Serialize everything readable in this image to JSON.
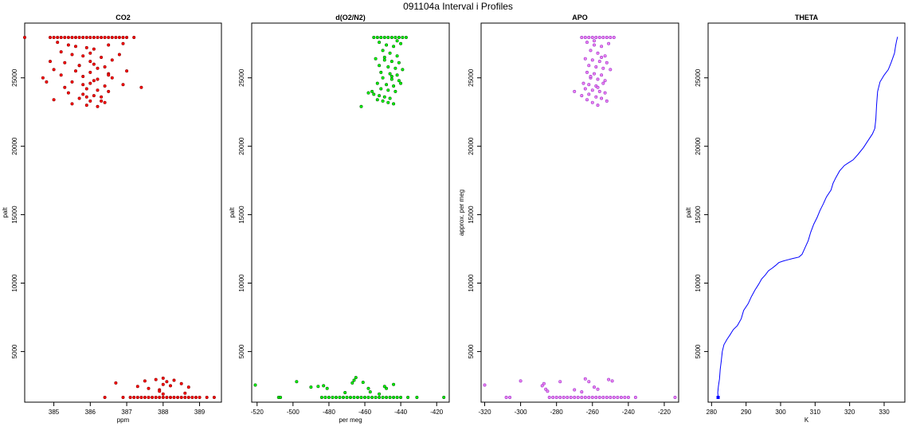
{
  "figure": {
    "title": "091104a   Interval i Profiles"
  },
  "chart_data": [
    {
      "type": "scatter",
      "title": "CO2",
      "xlabel": "ppm",
      "ylabel": "palt",
      "xlim": [
        384.2,
        389.6
      ],
      "ylim": [
        1300,
        29000
      ],
      "xticks": [
        385,
        386,
        387,
        388,
        389
      ],
      "yticks": [
        5000,
        10000,
        15000,
        20000,
        25000
      ],
      "color_fill": "#ff0000",
      "color_edge": "#8b0000",
      "series": [
        {
          "x": [
            384.2,
            384.9,
            385.0,
            385.1,
            385.2,
            385.3,
            385.4,
            385.5,
            385.6,
            385.7,
            385.8,
            385.9,
            386.0,
            386.1,
            386.2,
            386.3,
            386.4,
            386.5,
            386.6,
            386.7,
            386.8,
            386.9,
            387.0,
            387.2,
            385.1,
            385.4,
            385.6,
            385.9,
            386.1,
            386.5,
            386.9,
            385.2,
            385.5,
            385.8,
            386.0,
            386.3,
            386.6,
            386.8,
            384.9,
            385.3,
            385.7,
            386.1,
            386.4,
            386.2,
            385.0,
            385.6,
            386.0,
            386.5,
            387.0,
            384.7,
            385.2,
            385.8,
            386.2,
            386.6,
            385.5,
            386.0,
            386.4,
            386.9,
            385.3,
            385.9,
            386.2,
            386.5,
            384.8,
            385.4,
            385.8,
            386.1,
            386.3,
            387.4,
            385.0,
            385.7,
            386.0,
            386.4,
            385.5,
            385.9,
            386.2,
            385.7,
            386.0,
            386.5,
            385.8,
            386.1,
            385.9,
            386.3
          ],
          "y": [
            27950,
            27950,
            27950,
            27950,
            27950,
            27950,
            27950,
            27950,
            27950,
            27950,
            27950,
            27950,
            27950,
            27950,
            27950,
            27950,
            27950,
            27950,
            27950,
            27950,
            27950,
            27950,
            27950,
            27950,
            27600,
            27400,
            27300,
            27200,
            27100,
            27400,
            27500,
            26900,
            26700,
            26600,
            26800,
            26500,
            26300,
            26700,
            26200,
            26100,
            25900,
            26000,
            25800,
            25700,
            25600,
            25500,
            25400,
            25300,
            25500,
            25000,
            25200,
            25100,
            24900,
            25000,
            24700,
            24600,
            24400,
            24500,
            24300,
            24200,
            24100,
            24000,
            24700,
            23900,
            23800,
            23700,
            23600,
            24300,
            23400,
            23500,
            23300,
            23200,
            23100,
            23000,
            22900,
            25900,
            26200,
            25200,
            24500,
            24800,
            23600,
            23300
          ]
        },
        {
          "x": [
            386.4,
            386.9,
            387.1,
            387.2,
            387.3,
            387.4,
            387.5,
            387.6,
            387.7,
            387.8,
            387.9,
            388.0,
            388.1,
            388.2,
            388.3,
            388.4,
            388.5,
            388.6,
            388.7,
            388.8,
            388.9,
            389.0,
            389.2,
            389.4,
            387.3,
            387.6,
            387.9,
            388.0,
            388.2,
            388.5,
            388.7,
            386.7,
            387.5,
            387.8,
            388.1,
            388.3,
            388.0,
            387.9,
            388.0,
            388.6
          ],
          "y": [
            1650,
            1650,
            1650,
            1650,
            1650,
            1650,
            1650,
            1650,
            1650,
            1650,
            1650,
            1650,
            1650,
            1650,
            1650,
            1650,
            1650,
            1650,
            1650,
            1650,
            1650,
            1650,
            1650,
            1650,
            2450,
            2300,
            2200,
            2600,
            2500,
            2650,
            2400,
            2700,
            2850,
            2950,
            2800,
            2900,
            3050,
            2100,
            1900,
            1950
          ]
        }
      ]
    },
    {
      "type": "scatter",
      "title": "d(O2/N2)",
      "xlabel": "per meg",
      "ylabel": "palt",
      "xlim": [
        -523,
        -413
      ],
      "ylim": [
        1300,
        29000
      ],
      "xticks": [
        -520,
        -500,
        -480,
        -460,
        -440,
        -420
      ],
      "yticks": [
        5000,
        10000,
        15000,
        20000,
        25000
      ],
      "color_fill": "#00ff00",
      "color_edge": "#006400",
      "series": [
        {
          "x": [
            -455,
            -453,
            -451,
            -449,
            -447,
            -445,
            -443,
            -441,
            -439,
            -437,
            -452,
            -448,
            -444,
            -440,
            -450,
            -446,
            -442,
            -454,
            -449,
            -445,
            -441,
            -452,
            -447,
            -443,
            -439,
            -451,
            -446,
            -442,
            -450,
            -445,
            -441,
            -453,
            -448,
            -444,
            -440,
            -451,
            -447,
            -443,
            -458,
            -455,
            -452,
            -449,
            -446,
            -462,
            -456,
            -453,
            -450,
            -447,
            -444,
            -442,
            -449,
            -445
          ],
          "y": [
            27950,
            27950,
            27950,
            27950,
            27950,
            27950,
            27950,
            27950,
            27950,
            27950,
            27600,
            27400,
            27300,
            27500,
            27000,
            26800,
            26600,
            26400,
            26300,
            26200,
            26100,
            25900,
            25800,
            25700,
            25600,
            25400,
            25300,
            25200,
            25000,
            24900,
            24800,
            24600,
            24500,
            24400,
            24600,
            24200,
            24100,
            24000,
            23900,
            23800,
            23700,
            23600,
            23500,
            22900,
            24000,
            23400,
            23300,
            23200,
            23100,
            27700,
            26500,
            25100
          ]
        },
        {
          "x": [
            -521,
            -508,
            -507,
            -498,
            -490,
            -486,
            -484,
            -482,
            -480,
            -478,
            -476,
            -474,
            -472,
            -470,
            -468,
            -466,
            -464,
            -462,
            -460,
            -458,
            -456,
            -454,
            -452,
            -450,
            -448,
            -446,
            -444,
            -442,
            -440,
            -436,
            -431,
            -416,
            -483,
            -481,
            -466,
            -465,
            -467,
            -458,
            -457,
            -449,
            -448,
            -452,
            -444,
            -471,
            -461
          ],
          "y": [
            2550,
            1650,
            1650,
            2800,
            2400,
            2450,
            1650,
            1650,
            1650,
            1650,
            1650,
            1650,
            1650,
            1650,
            1650,
            1650,
            1650,
            1650,
            1650,
            1650,
            1650,
            1650,
            1650,
            1650,
            1650,
            1650,
            1650,
            1650,
            1650,
            1650,
            1650,
            1650,
            2500,
            2300,
            2900,
            3100,
            2700,
            2300,
            2050,
            2450,
            2300,
            1900,
            2600,
            2000,
            2750
          ]
        }
      ]
    },
    {
      "type": "scatter",
      "title": "APO",
      "xlabel": "",
      "ylabel": "approx. per meg",
      "xlim": [
        -322,
        -212
      ],
      "ylim": [
        1300,
        29000
      ],
      "xticks": [
        -320,
        -300,
        -280,
        -260,
        -240,
        -220
      ],
      "yticks": [
        5000,
        10000,
        15000,
        20000,
        25000
      ],
      "color_fill": "#ee82ee",
      "color_edge": "#9932cc",
      "series": [
        {
          "x": [
            -266,
            -264,
            -262,
            -260,
            -258,
            -256,
            -254,
            -252,
            -250,
            -248,
            -263,
            -259,
            -255,
            -251,
            -261,
            -257,
            -253,
            -264,
            -260,
            -256,
            -252,
            -262,
            -258,
            -254,
            -250,
            -263,
            -259,
            -255,
            -261,
            -257,
            -253,
            -265,
            -262,
            -258,
            -254,
            -264,
            -260,
            -256,
            -262,
            -258,
            -255,
            -252,
            -270,
            -266,
            -263,
            -260,
            -257,
            -259,
            -255,
            -261,
            -257,
            -253
          ],
          "y": [
            27950,
            27950,
            27950,
            27950,
            27950,
            27950,
            27950,
            27950,
            27950,
            27950,
            27600,
            27400,
            27300,
            27500,
            27000,
            26800,
            26600,
            26400,
            26300,
            26200,
            26100,
            25900,
            25800,
            25700,
            25600,
            25400,
            25300,
            25200,
            25000,
            24900,
            24800,
            24600,
            24500,
            24400,
            24600,
            24200,
            24100,
            24000,
            23800,
            23600,
            23500,
            23300,
            24000,
            23700,
            23400,
            23200,
            23000,
            27700,
            26500,
            25100,
            24300,
            23900
          ]
        },
        {
          "x": [
            -320,
            -308,
            -306,
            -300,
            -288,
            -286,
            -284,
            -282,
            -280,
            -278,
            -276,
            -274,
            -272,
            -270,
            -268,
            -266,
            -264,
            -262,
            -260,
            -258,
            -256,
            -254,
            -252,
            -250,
            -248,
            -246,
            -244,
            -242,
            -240,
            -236,
            -214,
            -287,
            -285,
            -264,
            -262,
            -259,
            -257,
            -251,
            -249,
            -278,
            -270,
            -266
          ],
          "y": [
            2550,
            1650,
            1650,
            2850,
            2500,
            2250,
            1650,
            1650,
            1650,
            1650,
            1650,
            1650,
            1650,
            1650,
            1650,
            1650,
            1650,
            1650,
            1650,
            1650,
            1650,
            1650,
            1650,
            1650,
            1650,
            1650,
            1650,
            1650,
            1650,
            1650,
            1650,
            2650,
            2100,
            3000,
            2800,
            2400,
            2250,
            2950,
            2850,
            2800,
            2200,
            2050
          ]
        }
      ]
    },
    {
      "type": "line",
      "title": "THETA",
      "xlabel": "K",
      "ylabel": "palt",
      "xlim": [
        279,
        336
      ],
      "ylim": [
        1300,
        29000
      ],
      "xticks": [
        280,
        290,
        300,
        310,
        320,
        330
      ],
      "yticks": [
        5000,
        10000,
        15000,
        20000,
        25000
      ],
      "color": "#0000ff",
      "series": [
        {
          "x": [
            281.9,
            281.8,
            282.0,
            282.3,
            282.5,
            282.8,
            283.1,
            283.6,
            284.5,
            285.3,
            286.3,
            287.5,
            288.6,
            289.3,
            290.6,
            291.5,
            292.6,
            293.6,
            294.5,
            295.6,
            296.5,
            297.6,
            298.6,
            299.5,
            300.6,
            302.0,
            303.5,
            305.3,
            306.2,
            307.1,
            308.0,
            308.7,
            309.6,
            310.6,
            311.4,
            312.4,
            313.3,
            314.6,
            315.2,
            316.0,
            317.1,
            318.5,
            319.7,
            321.0,
            322.4,
            324.0,
            325.3,
            326.6,
            327.3,
            327.6,
            327.8,
            328.1,
            328.8,
            330.0,
            331.2,
            332.0,
            333.0,
            333.3,
            333.6,
            333.9
          ],
          "y": [
            1650,
            2000,
            2500,
            3000,
            3700,
            4300,
            5000,
            5500,
            5900,
            6200,
            6600,
            6900,
            7400,
            8000,
            8500,
            9000,
            9500,
            9900,
            10300,
            10600,
            10900,
            11100,
            11300,
            11500,
            11600,
            11700,
            11800,
            11900,
            12100,
            12600,
            13100,
            13700,
            14300,
            14800,
            15300,
            15800,
            16300,
            16800,
            17300,
            17700,
            18200,
            18600,
            18800,
            19000,
            19400,
            19900,
            20400,
            20900,
            21300,
            22000,
            23000,
            24000,
            24700,
            25200,
            25600,
            26100,
            26800,
            27300,
            27700,
            28000
          ]
        }
      ]
    }
  ]
}
